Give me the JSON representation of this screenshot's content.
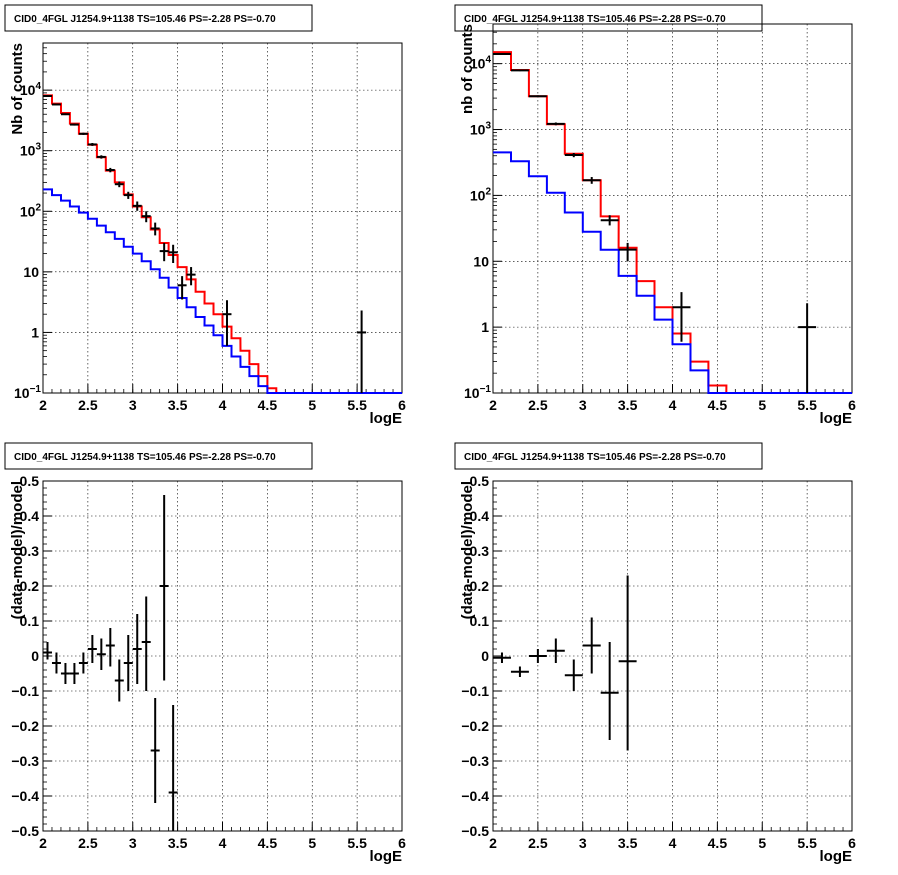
{
  "chart_data": [
    {
      "id": "counts-left",
      "type": "line",
      "title": "CID0_4FGL J1254.9+1138 TS=105.46 PS=-2.28 PS=-0.70",
      "xlabel": "logE",
      "ylabel": "Nb of counts",
      "ylog": true,
      "xlim": [
        2,
        6
      ],
      "ylim": [
        0.1,
        60000
      ],
      "grid": true,
      "xticks": [
        "2",
        "2.5",
        "3",
        "3.5",
        "4",
        "4.5",
        "5",
        "5.5",
        "6"
      ],
      "yticks": [
        {
          "v": 0.1,
          "label": "10",
          "sup": "−1"
        },
        {
          "v": 1,
          "label": "1"
        },
        {
          "v": 10,
          "label": "10"
        },
        {
          "v": 100,
          "label": "10",
          "sup": "2"
        },
        {
          "v": 1000,
          "label": "10",
          "sup": "3"
        },
        {
          "v": 10000,
          "label": "10",
          "sup": "4"
        }
      ],
      "series": [
        {
          "color": "#ff0000",
          "kind": "hist",
          "bin_width": 0.1,
          "x": [
            2.0,
            2.1,
            2.2,
            2.3,
            2.4,
            2.5,
            2.6,
            2.7,
            2.8,
            2.9,
            3.0,
            3.1,
            3.2,
            3.3,
            3.4,
            3.5,
            3.6,
            3.7,
            3.8,
            3.9,
            4.0,
            4.1,
            4.2,
            4.3,
            4.4,
            4.5,
            4.6,
            4.7,
            4.8,
            4.9,
            5.0,
            5.1,
            5.2,
            5.3,
            5.4,
            5.5,
            5.6,
            5.7,
            5.8,
            5.9
          ],
          "values": [
            8200,
            6000,
            4200,
            2800,
            1900,
            1250,
            780,
            470,
            300,
            190,
            120,
            80,
            50,
            30,
            19,
            12,
            7.5,
            4.7,
            3,
            2,
            1.25,
            0.8,
            0.5,
            0.3,
            0.19,
            0.12,
            0.1,
            0.1,
            0.1,
            0.1,
            0.1,
            0.1,
            0.1,
            0.1,
            0.1,
            0.1,
            0.1,
            0.1,
            0.1,
            0.1
          ]
        },
        {
          "color": "#0000ff",
          "kind": "hist",
          "bin_width": 0.1,
          "x": [
            2.0,
            2.1,
            2.2,
            2.3,
            2.4,
            2.5,
            2.6,
            2.7,
            2.8,
            2.9,
            3.0,
            3.1,
            3.2,
            3.3,
            3.4,
            3.5,
            3.6,
            3.7,
            3.8,
            3.9,
            4.0,
            4.1,
            4.2,
            4.3,
            4.4,
            4.5,
            4.6,
            4.7,
            4.8,
            4.9,
            5.0,
            5.1,
            5.2,
            5.3,
            5.4,
            5.5,
            5.6,
            5.7,
            5.8,
            5.9
          ],
          "values": [
            230,
            185,
            150,
            120,
            95,
            75,
            58,
            45,
            35,
            26,
            20,
            15,
            11,
            8,
            5.5,
            3.7,
            2.6,
            1.8,
            1.3,
            0.9,
            0.6,
            0.4,
            0.27,
            0.19,
            0.13,
            0.1,
            0.1,
            0.1,
            0.1,
            0.1,
            0.1,
            0.1,
            0.1,
            0.1,
            0.1,
            0.1,
            0.1,
            0.1,
            0.1,
            0.1
          ]
        },
        {
          "color": "#000000",
          "kind": "errorbar",
          "points": [
            {
              "x": 2.05,
              "y": 8000,
              "xerr": 0.05,
              "ylo": 7800,
              "yhi": 8200
            },
            {
              "x": 2.15,
              "y": 5800,
              "xerr": 0.05,
              "ylo": 5650,
              "yhi": 5950
            },
            {
              "x": 2.25,
              "y": 4000,
              "xerr": 0.05,
              "ylo": 3880,
              "yhi": 4130
            },
            {
              "x": 2.35,
              "y": 2700,
              "xerr": 0.05,
              "ylo": 2600,
              "yhi": 2800
            },
            {
              "x": 2.45,
              "y": 1900,
              "xerr": 0.05,
              "ylo": 1820,
              "yhi": 1980
            },
            {
              "x": 2.55,
              "y": 1270,
              "xerr": 0.05,
              "ylo": 1200,
              "yhi": 1340
            },
            {
              "x": 2.65,
              "y": 790,
              "xerr": 0.05,
              "ylo": 740,
              "yhi": 840
            },
            {
              "x": 2.75,
              "y": 480,
              "xerr": 0.05,
              "ylo": 440,
              "yhi": 520
            },
            {
              "x": 2.85,
              "y": 280,
              "xerr": 0.05,
              "ylo": 250,
              "yhi": 310
            },
            {
              "x": 2.95,
              "y": 185,
              "xerr": 0.05,
              "ylo": 160,
              "yhi": 210
            },
            {
              "x": 3.05,
              "y": 123,
              "xerr": 0.05,
              "ylo": 102,
              "yhi": 145
            },
            {
              "x": 3.15,
              "y": 83,
              "xerr": 0.05,
              "ylo": 66,
              "yhi": 100
            },
            {
              "x": 3.25,
              "y": 52,
              "xerr": 0.05,
              "ylo": 40,
              "yhi": 65
            },
            {
              "x": 3.35,
              "y": 22,
              "xerr": 0.05,
              "ylo": 15,
              "yhi": 30
            },
            {
              "x": 3.45,
              "y": 21,
              "xerr": 0.05,
              "ylo": 14,
              "yhi": 28
            },
            {
              "x": 3.55,
              "y": 6,
              "xerr": 0.05,
              "ylo": 3.5,
              "yhi": 8.5
            },
            {
              "x": 3.65,
              "y": 9,
              "xerr": 0.05,
              "ylo": 6,
              "yhi": 12
            },
            {
              "x": 4.05,
              "y": 2,
              "xerr": 0.05,
              "ylo": 0.6,
              "yhi": 3.4
            },
            {
              "x": 5.55,
              "y": 1,
              "xerr": 0.05,
              "ylo": 0.1,
              "yhi": 2.3
            }
          ]
        }
      ]
    },
    {
      "id": "counts-right",
      "type": "line",
      "title": "CID0_4FGL J1254.9+1138 TS=105.46 PS=-2.28 PS=-0.70",
      "xlabel": "logE",
      "ylabel": "nb of counts",
      "ylog": true,
      "xlim": [
        2,
        6
      ],
      "ylim": [
        0.1,
        40000
      ],
      "grid": true,
      "xticks": [
        "2",
        "2.5",
        "3",
        "3.5",
        "4",
        "4.5",
        "5",
        "5.5",
        "6"
      ],
      "yticks": [
        {
          "v": 0.1,
          "label": "10",
          "sup": "−1"
        },
        {
          "v": 1,
          "label": "1"
        },
        {
          "v": 10,
          "label": "10"
        },
        {
          "v": 100,
          "label": "10",
          "sup": "2"
        },
        {
          "v": 1000,
          "label": "10",
          "sup": "3"
        },
        {
          "v": 10000,
          "label": "10",
          "sup": "4"
        }
      ],
      "series": [
        {
          "color": "#ff0000",
          "kind": "hist",
          "bin_width": 0.2,
          "x": [
            2.0,
            2.2,
            2.4,
            2.6,
            2.8,
            3.0,
            3.2,
            3.4,
            3.6,
            3.8,
            4.0,
            4.2,
            4.4,
            4.6,
            4.8,
            5.0,
            5.2,
            5.4,
            5.6,
            5.8
          ],
          "values": [
            15000,
            8000,
            3200,
            1200,
            430,
            170,
            48,
            16,
            5,
            2,
            0.8,
            0.3,
            0.13,
            0.1,
            0.1,
            0.1,
            0.1,
            0.1,
            0.1,
            0.1
          ]
        },
        {
          "color": "#0000ff",
          "kind": "hist",
          "bin_width": 0.2,
          "x": [
            2.0,
            2.2,
            2.4,
            2.6,
            2.8,
            3.0,
            3.2,
            3.4,
            3.6,
            3.8,
            4.0,
            4.2,
            4.4,
            4.6,
            4.8,
            5.0,
            5.2,
            5.4,
            5.6,
            5.8
          ],
          "values": [
            450,
            330,
            195,
            110,
            55,
            28,
            15,
            6,
            3,
            1.3,
            0.55,
            0.22,
            0.1,
            0.1,
            0.1,
            0.1,
            0.1,
            0.1,
            0.1,
            0.1
          ]
        },
        {
          "color": "#000000",
          "kind": "errorbar",
          "points": [
            {
              "x": 2.1,
              "y": 14000,
              "xerr": 0.1,
              "ylo": 13700,
              "yhi": 14300
            },
            {
              "x": 2.3,
              "y": 7900,
              "xerr": 0.1,
              "ylo": 7700,
              "yhi": 8100
            },
            {
              "x": 2.5,
              "y": 3200,
              "xerr": 0.1,
              "ylo": 3100,
              "yhi": 3300
            },
            {
              "x": 2.7,
              "y": 1220,
              "xerr": 0.1,
              "ylo": 1160,
              "yhi": 1280
            },
            {
              "x": 2.9,
              "y": 410,
              "xerr": 0.1,
              "ylo": 380,
              "yhi": 440
            },
            {
              "x": 3.1,
              "y": 170,
              "xerr": 0.1,
              "ylo": 150,
              "yhi": 190
            },
            {
              "x": 3.3,
              "y": 42,
              "xerr": 0.1,
              "ylo": 35,
              "yhi": 50
            },
            {
              "x": 3.5,
              "y": 15,
              "xerr": 0.1,
              "ylo": 10,
              "yhi": 19
            },
            {
              "x": 4.1,
              "y": 2,
              "xerr": 0.1,
              "ylo": 0.6,
              "yhi": 3.4
            },
            {
              "x": 5.5,
              "y": 1,
              "xerr": 0.1,
              "ylo": 0.1,
              "yhi": 2.3
            }
          ]
        }
      ]
    },
    {
      "id": "resid-left",
      "type": "scatter",
      "title": "CID0_4FGL J1254.9+1138 TS=105.46 PS=-2.28 PS=-0.70",
      "xlabel": "logE",
      "ylabel": "(data-model)/model",
      "ylog": false,
      "xlim": [
        2,
        6
      ],
      "ylim": [
        -0.5,
        0.5
      ],
      "grid": true,
      "xticks": [
        "2",
        "2.5",
        "3",
        "3.5",
        "4",
        "4.5",
        "5",
        "5.5",
        "6"
      ],
      "yticks": [
        {
          "v": -0.5,
          "label": "−0.5"
        },
        {
          "v": -0.4,
          "label": "−0.4"
        },
        {
          "v": -0.3,
          "label": "−0.3"
        },
        {
          "v": -0.2,
          "label": "−0.2"
        },
        {
          "v": -0.1,
          "label": "−0.1"
        },
        {
          "v": 0,
          "label": "0"
        },
        {
          "v": 0.1,
          "label": "0.1"
        },
        {
          "v": 0.2,
          "label": "0.2"
        },
        {
          "v": 0.3,
          "label": "0.3"
        },
        {
          "v": 0.4,
          "label": "0.4"
        },
        {
          "v": 0.5,
          "label": "0.5"
        }
      ],
      "series": [
        {
          "color": "#000000",
          "kind": "errorbar",
          "points": [
            {
              "x": 2.05,
              "y": 0.01,
              "xerr": 0.05,
              "ylo": -0.01,
              "yhi": 0.04
            },
            {
              "x": 2.15,
              "y": -0.02,
              "xerr": 0.05,
              "ylo": -0.05,
              "yhi": 0.01
            },
            {
              "x": 2.25,
              "y": -0.05,
              "xerr": 0.05,
              "ylo": -0.08,
              "yhi": -0.02
            },
            {
              "x": 2.35,
              "y": -0.05,
              "xerr": 0.05,
              "ylo": -0.08,
              "yhi": -0.02
            },
            {
              "x": 2.45,
              "y": -0.02,
              "xerr": 0.05,
              "ylo": -0.05,
              "yhi": 0.01
            },
            {
              "x": 2.55,
              "y": 0.02,
              "xerr": 0.05,
              "ylo": -0.02,
              "yhi": 0.06
            },
            {
              "x": 2.65,
              "y": 0.005,
              "xerr": 0.05,
              "ylo": -0.04,
              "yhi": 0.05
            },
            {
              "x": 2.75,
              "y": 0.03,
              "xerr": 0.05,
              "ylo": -0.03,
              "yhi": 0.08
            },
            {
              "x": 2.85,
              "y": -0.07,
              "xerr": 0.05,
              "ylo": -0.13,
              "yhi": -0.01
            },
            {
              "x": 2.95,
              "y": -0.02,
              "xerr": 0.05,
              "ylo": -0.1,
              "yhi": 0.06
            },
            {
              "x": 3.05,
              "y": 0.02,
              "xerr": 0.05,
              "ylo": -0.08,
              "yhi": 0.12
            },
            {
              "x": 3.15,
              "y": 0.04,
              "xerr": 0.05,
              "ylo": -0.1,
              "yhi": 0.17
            },
            {
              "x": 3.25,
              "y": -0.27,
              "xerr": 0.05,
              "ylo": -0.42,
              "yhi": -0.12
            },
            {
              "x": 3.35,
              "y": 0.2,
              "xerr": 0.05,
              "ylo": -0.07,
              "yhi": 0.46
            },
            {
              "x": 3.45,
              "y": -0.39,
              "xerr": 0.05,
              "ylo": -0.5,
              "yhi": -0.14
            }
          ]
        }
      ]
    },
    {
      "id": "resid-right",
      "type": "scatter",
      "title": "CID0_4FGL J1254.9+1138 TS=105.46 PS=-2.28 PS=-0.70",
      "xlabel": "logE",
      "ylabel": "(data-model)/model",
      "ylog": false,
      "xlim": [
        2,
        6
      ],
      "ylim": [
        -0.5,
        0.5
      ],
      "grid": true,
      "xticks": [
        "2",
        "2.5",
        "3",
        "3.5",
        "4",
        "4.5",
        "5",
        "5.5",
        "6"
      ],
      "yticks": [
        {
          "v": -0.5,
          "label": "−0.5"
        },
        {
          "v": -0.4,
          "label": "−0.4"
        },
        {
          "v": -0.3,
          "label": "−0.3"
        },
        {
          "v": -0.2,
          "label": "−0.2"
        },
        {
          "v": -0.1,
          "label": "−0.1"
        },
        {
          "v": 0,
          "label": "0"
        },
        {
          "v": 0.1,
          "label": "0.1"
        },
        {
          "v": 0.2,
          "label": "0.2"
        },
        {
          "v": 0.3,
          "label": "0.3"
        },
        {
          "v": 0.4,
          "label": "0.4"
        },
        {
          "v": 0.5,
          "label": "0.5"
        }
      ],
      "series": [
        {
          "color": "#000000",
          "kind": "errorbar",
          "points": [
            {
              "x": 2.1,
              "y": -0.005,
              "xerr": 0.1,
              "ylo": -0.02,
              "yhi": 0.01
            },
            {
              "x": 2.3,
              "y": -0.045,
              "xerr": 0.1,
              "ylo": -0.06,
              "yhi": -0.03
            },
            {
              "x": 2.5,
              "y": 0,
              "xerr": 0.1,
              "ylo": -0.02,
              "yhi": 0.02
            },
            {
              "x": 2.7,
              "y": 0.015,
              "xerr": 0.1,
              "ylo": -0.02,
              "yhi": 0.05
            },
            {
              "x": 2.9,
              "y": -0.055,
              "xerr": 0.1,
              "ylo": -0.1,
              "yhi": -0.01
            },
            {
              "x": 3.1,
              "y": 0.03,
              "xerr": 0.1,
              "ylo": -0.05,
              "yhi": 0.11
            },
            {
              "x": 3.3,
              "y": -0.105,
              "xerr": 0.1,
              "ylo": -0.24,
              "yhi": 0.04
            },
            {
              "x": 3.5,
              "y": -0.015,
              "xerr": 0.1,
              "ylo": -0.27,
              "yhi": 0.23
            }
          ]
        }
      ]
    }
  ]
}
